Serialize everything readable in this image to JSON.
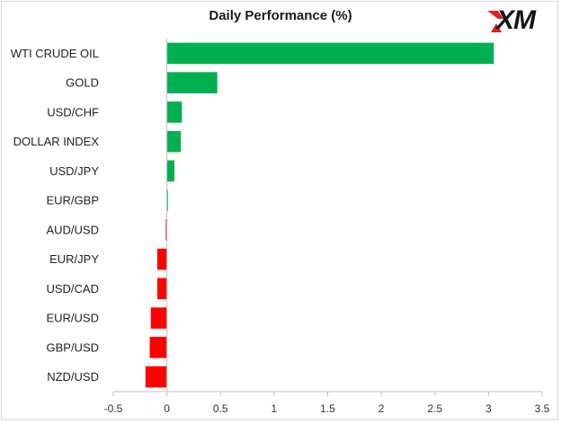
{
  "title": "Daily Performance  (%)",
  "logo": {
    "text": "XM"
  },
  "chart_data": {
    "type": "bar",
    "orientation": "horizontal",
    "title": "Daily Performance  (%)",
    "xlabel": "",
    "ylabel": "",
    "categories": [
      "WTI CRUDE OIL",
      "GOLD",
      "USD/CHF",
      "DOLLAR INDEX",
      "USD/JPY",
      "EUR/GBP",
      "AUD/USD",
      "EUR/JPY",
      "USD/CAD",
      "EUR/USD",
      "GBP/USD",
      "NZD/USD"
    ],
    "values": [
      3.05,
      0.47,
      0.14,
      0.13,
      0.07,
      0.01,
      -0.01,
      -0.09,
      -0.09,
      -0.15,
      -0.16,
      -0.2
    ],
    "xlim": [
      -0.5,
      3.5
    ],
    "xticks": [
      -0.5,
      0,
      0.5,
      1,
      1.5,
      2,
      2.5,
      3,
      3.5
    ],
    "xtick_labels": [
      "-0.5",
      "0",
      "0.5",
      "1",
      "1.5",
      "2",
      "2.5",
      "3",
      "3.5"
    ],
    "grid": false,
    "legend": "none",
    "colors": {
      "positive": "#00b050",
      "negative": "#ff0000",
      "axis": "#bfbfbf"
    }
  }
}
